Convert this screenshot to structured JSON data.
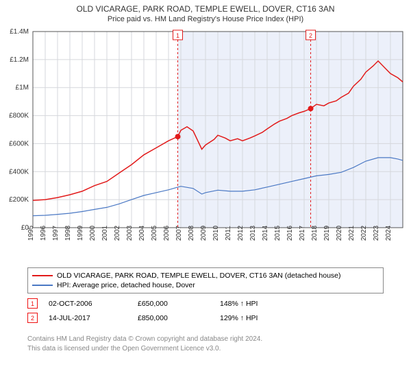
{
  "title": "OLD VICARAGE, PARK ROAD, TEMPLE EWELL, DOVER, CT16 3AN",
  "subtitle": "Price paid vs. HM Land Registry's House Price Index (HPI)",
  "chart": {
    "type": "line",
    "background_color": "#ffffff",
    "plot_bg": "#ffffff",
    "shaded_bg": "#ecf0fa",
    "shaded_x_start": 2006.75,
    "shaded_x_end": 2025.0,
    "xlim": [
      1995,
      2025
    ],
    "ylim": [
      0,
      1400000
    ],
    "ytick_step": 200000,
    "ytick_labels": [
      "£0",
      "£200K",
      "£400K",
      "£600K",
      "£800K",
      "£1M",
      "£1.2M",
      "£1.4M"
    ],
    "xticks": [
      1995,
      1996,
      1997,
      1998,
      1999,
      2000,
      2001,
      2002,
      2003,
      2004,
      2005,
      2006,
      2007,
      2008,
      2009,
      2010,
      2011,
      2012,
      2013,
      2014,
      2015,
      2016,
      2017,
      2018,
      2019,
      2020,
      2021,
      2022,
      2023,
      2024
    ],
    "grid_color": "#d5d7dc",
    "axis_color": "#555555",
    "title_fontsize": 12,
    "label_fontsize": 10,
    "series": [
      {
        "name": "property",
        "label": "OLD VICARAGE, PARK ROAD, TEMPLE EWELL, DOVER, CT16 3AN (detached house)",
        "color": "#e21a1a",
        "line_width": 1.5,
        "points": [
          [
            1995,
            195000
          ],
          [
            1996,
            200000
          ],
          [
            1997,
            215000
          ],
          [
            1998,
            235000
          ],
          [
            1999,
            260000
          ],
          [
            2000,
            300000
          ],
          [
            2001,
            330000
          ],
          [
            2002,
            390000
          ],
          [
            2003,
            450000
          ],
          [
            2004,
            520000
          ],
          [
            2005,
            570000
          ],
          [
            2006,
            620000
          ],
          [
            2006.75,
            650000
          ],
          [
            2007,
            695000
          ],
          [
            2007.5,
            720000
          ],
          [
            2008,
            690000
          ],
          [
            2008.7,
            560000
          ],
          [
            2009,
            590000
          ],
          [
            2009.7,
            630000
          ],
          [
            2010,
            660000
          ],
          [
            2010.6,
            640000
          ],
          [
            2011,
            620000
          ],
          [
            2011.6,
            635000
          ],
          [
            2012,
            620000
          ],
          [
            2012.6,
            640000
          ],
          [
            2013,
            655000
          ],
          [
            2013.6,
            680000
          ],
          [
            2014,
            705000
          ],
          [
            2014.6,
            740000
          ],
          [
            2015,
            760000
          ],
          [
            2015.6,
            780000
          ],
          [
            2016,
            800000
          ],
          [
            2016.6,
            820000
          ],
          [
            2017,
            830000
          ],
          [
            2017.53,
            850000
          ],
          [
            2018,
            880000
          ],
          [
            2018.6,
            870000
          ],
          [
            2019,
            890000
          ],
          [
            2019.6,
            905000
          ],
          [
            2020,
            930000
          ],
          [
            2020.6,
            960000
          ],
          [
            2021,
            1010000
          ],
          [
            2021.6,
            1060000
          ],
          [
            2022,
            1110000
          ],
          [
            2022.6,
            1155000
          ],
          [
            2023,
            1190000
          ],
          [
            2023.5,
            1145000
          ],
          [
            2024,
            1100000
          ],
          [
            2024.6,
            1070000
          ],
          [
            2025,
            1040000
          ]
        ]
      },
      {
        "name": "hpi",
        "label": "HPI: Average price, detached house, Dover",
        "color": "#4a78c4",
        "line_width": 1.2,
        "points": [
          [
            1995,
            85000
          ],
          [
            1996,
            88000
          ],
          [
            1997,
            95000
          ],
          [
            1998,
            103000
          ],
          [
            1999,
            115000
          ],
          [
            2000,
            130000
          ],
          [
            2001,
            145000
          ],
          [
            2002,
            170000
          ],
          [
            2003,
            200000
          ],
          [
            2004,
            230000
          ],
          [
            2005,
            250000
          ],
          [
            2006,
            270000
          ],
          [
            2007,
            295000
          ],
          [
            2008,
            280000
          ],
          [
            2008.7,
            240000
          ],
          [
            2009,
            250000
          ],
          [
            2010,
            268000
          ],
          [
            2011,
            260000
          ],
          [
            2012,
            260000
          ],
          [
            2013,
            270000
          ],
          [
            2014,
            290000
          ],
          [
            2015,
            310000
          ],
          [
            2016,
            330000
          ],
          [
            2017,
            350000
          ],
          [
            2018,
            370000
          ],
          [
            2019,
            380000
          ],
          [
            2020,
            395000
          ],
          [
            2021,
            430000
          ],
          [
            2022,
            475000
          ],
          [
            2023,
            500000
          ],
          [
            2024,
            500000
          ],
          [
            2024.6,
            490000
          ],
          [
            2025,
            480000
          ]
        ]
      }
    ],
    "sale_markers": [
      {
        "n": 1,
        "x": 2006.75,
        "y": 650000,
        "line_color": "#e21a1a",
        "dash": "3,3"
      },
      {
        "n": 2,
        "x": 2017.53,
        "y": 850000,
        "line_color": "#e21a1a",
        "dash": "3,3"
      }
    ],
    "marker_box_border": "#e21a1a",
    "marker_box_bg": "#ffffff",
    "marker_box_text": "#e21a1a"
  },
  "legend": {
    "items": [
      {
        "color": "#e21a1a",
        "text": "OLD VICARAGE, PARK ROAD, TEMPLE EWELL, DOVER, CT16 3AN (detached house)"
      },
      {
        "color": "#4a78c4",
        "text": "HPI: Average price, detached house, Dover"
      }
    ]
  },
  "sales": [
    {
      "n": "1",
      "date": "02-OCT-2006",
      "price": "£650,000",
      "hpi": "148% ↑ HPI"
    },
    {
      "n": "2",
      "date": "14-JUL-2017",
      "price": "£850,000",
      "hpi": "129% ↑ HPI"
    }
  ],
  "footer": {
    "line1": "Contains HM Land Registry data © Crown copyright and database right 2024.",
    "line2": "This data is licensed under the Open Government Licence v3.0."
  }
}
